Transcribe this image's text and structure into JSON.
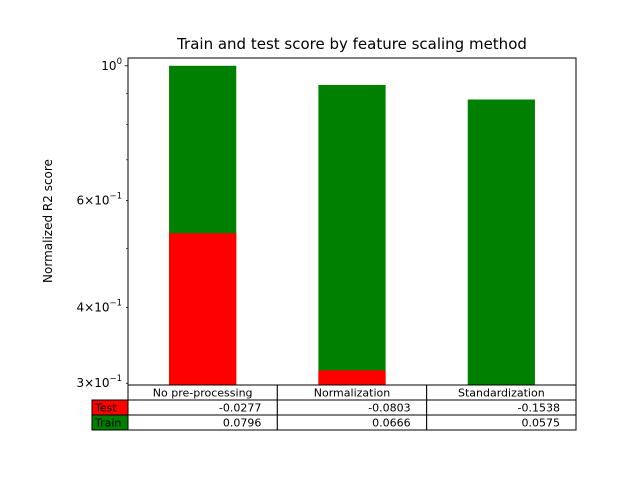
{
  "chart_data": {
    "type": "bar",
    "title": "Train and test score by feature scaling method",
    "ylabel": "Normalized R2 score",
    "xlabel": "",
    "yscale": "log",
    "ylim": [
      0.298,
      1.03
    ],
    "yticks": [
      {
        "value": 1.0,
        "mantissa": "",
        "exponent": "0",
        "kind": "major"
      },
      {
        "value": 0.6,
        "mantissa": "6",
        "exponent": "−1",
        "kind": "minor"
      },
      {
        "value": 0.4,
        "mantissa": "4",
        "exponent": "−1",
        "kind": "minor"
      },
      {
        "value": 0.3,
        "mantissa": "3",
        "exponent": "−1",
        "kind": "minor"
      }
    ],
    "minor_ticks_unlabeled": [
      0.5,
      0.7,
      0.8,
      0.9
    ],
    "categories": [
      "No pre-processing",
      "Normalization",
      "Standardization"
    ],
    "series": [
      {
        "name": "Train",
        "color": "#008000",
        "bar_heights": [
          1.0,
          0.93,
          0.88
        ]
      },
      {
        "name": "Test",
        "color": "#ff0000",
        "bar_heights": [
          0.53,
          0.315,
          0.28
        ]
      }
    ],
    "table": {
      "col_labels": [
        "No pre-processing",
        "Normalization",
        "Standardization"
      ],
      "rows": [
        {
          "label": "Test",
          "color": "#ff0000",
          "values": [
            "-0.0277",
            "-0.0803",
            "-0.1538"
          ]
        },
        {
          "label": "Train",
          "color": "#008000",
          "values": [
            "0.0796",
            "0.0666",
            "0.0575"
          ]
        }
      ]
    },
    "grid": false,
    "legend": "none"
  }
}
